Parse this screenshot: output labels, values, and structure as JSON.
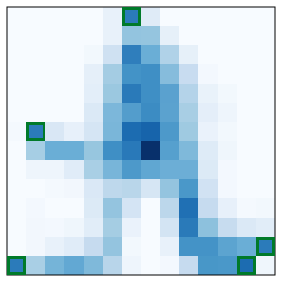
{
  "grid": {
    "rows": 14,
    "cols": 14,
    "colors": [
      [
        "#f7fbff",
        "#f7fbff",
        "#f7fbff",
        "#f7fbff",
        "#f7fbff",
        "#e8f1fa",
        "#2b7bba",
        "#dfebf7",
        "#f7fbff",
        "#f7fbff",
        "#f7fbff",
        "#f7fbff",
        "#f7fbff",
        "#f7fbff"
      ],
      [
        "#f7fbff",
        "#f7fbff",
        "#f7fbff",
        "#f7fbff",
        "#f7fbff",
        "#e8f1fa",
        "#93c4df",
        "#95c5df",
        "#e6f0f9",
        "#f7fbff",
        "#f7fbff",
        "#f7fbff",
        "#f7fbff",
        "#f7fbff"
      ],
      [
        "#f7fbff",
        "#f7fbff",
        "#f7fbff",
        "#f7fbff",
        "#f2f8fd",
        "#cfe1f2",
        "#2f7ebc",
        "#6aaed6",
        "#b0d2e8",
        "#e6f0f9",
        "#f7fbff",
        "#f7fbff",
        "#f7fbff",
        "#f7fbff"
      ],
      [
        "#f7fbff",
        "#f7fbff",
        "#f7fbff",
        "#f7fbff",
        "#e5eff9",
        "#a4cce3",
        "#4393c7",
        "#3f8fc5",
        "#86bcdc",
        "#c8dcf0",
        "#f3f8fe",
        "#f7fbff",
        "#f7fbff",
        "#f7fbff"
      ],
      [
        "#f7fbff",
        "#f7fbff",
        "#f7fbff",
        "#f7fbff",
        "#e3eef9",
        "#9bc8e0",
        "#2a7ab9",
        "#3f8fc5",
        "#5aa1cf",
        "#b4d3e9",
        "#e9f2fa",
        "#f2f8fd",
        "#f7fbff",
        "#f7fbff"
      ],
      [
        "#f7fbff",
        "#f7fbff",
        "#f7fbff",
        "#f7fbff",
        "#dbe9f6",
        "#7cb7da",
        "#539dcc",
        "#3c8cc3",
        "#5ba2cf",
        "#a8cee4",
        "#e4eef9",
        "#eef5fc",
        "#f7fbff",
        "#f7fbff"
      ],
      [
        "#f4f9fe",
        "#2b7bba",
        "#d9e7f5",
        "#e7f0fa",
        "#d5e5f4",
        "#7ab6d9",
        "#1c6cb1",
        "#1764ab",
        "#4d99ca",
        "#9fcae1",
        "#eaf2fb",
        "#f2f8fd",
        "#f7fbff",
        "#f7fbff"
      ],
      [
        "#f7fbff",
        "#a6cee4",
        "#6aaed6",
        "#6aaed6",
        "#97c6df",
        "#3f8fc5",
        "#2979b9",
        "#08306b",
        "#56a0ce",
        "#7fb9da",
        "#deebf7",
        "#eff6fc",
        "#f7fbff",
        "#f7fbff"
      ],
      [
        "#f7fbff",
        "#eef5fc",
        "#eef5fc",
        "#e0ecf8",
        "#a9cfe5",
        "#78b5d9",
        "#4d99ca",
        "#60a7d2",
        "#6caed6",
        "#6caed6",
        "#dceaf6",
        "#f3f8fe",
        "#f7fbff",
        "#f7fbff"
      ],
      [
        "#f7fbff",
        "#f7fbff",
        "#f4f9fe",
        "#f2f7fd",
        "#dae8f6",
        "#bed8ec",
        "#b9d6ea",
        "#d6e6f4",
        "#94c4df",
        "#4a98c9",
        "#d1e2f3",
        "#f3f8fe",
        "#f7fbff",
        "#f7fbff"
      ],
      [
        "#f7fbff",
        "#f3f8fe",
        "#f7fbff",
        "#f7fbff",
        "#dceaf6",
        "#94c4df",
        "#d4e4f4",
        "#f7fbff",
        "#bcd7eb",
        "#2070b4",
        "#c6dbef",
        "#e7f0fa",
        "#f4f9fe",
        "#f2f8fd"
      ],
      [
        "#f7fbff",
        "#f2f7fd",
        "#f3f8fe",
        "#eff6fc",
        "#e1edf8",
        "#a5cde3",
        "#eaf2fb",
        "#f7fbff",
        "#d3e4f3",
        "#2a7ab9",
        "#8dc1dd",
        "#c7dcef",
        "#dbe9f6",
        "#e1edf8"
      ],
      [
        "#f7fbff",
        "#f2f7fd",
        "#e8f1fa",
        "#e0ecf8",
        "#c6dbef",
        "#94c4df",
        "#f2f8fd",
        "#f7fbff",
        "#e8f1fa",
        "#4493c7",
        "#4493c7",
        "#5ca4d0",
        "#6aaed6",
        "#2b7bba"
      ],
      [
        "#2b7bba",
        "#a9cfe5",
        "#75b4d8",
        "#62a8d3",
        "#7fb9da",
        "#b8d5ea",
        "#eef5fc",
        "#f7fbff",
        "#f3f8fe",
        "#c6dbef",
        "#4897c8",
        "#4a98c9",
        "#1c6cb1",
        "#eff6fc"
      ]
    ],
    "marked_cells": [
      {
        "row": 0,
        "col": 6
      },
      {
        "row": 6,
        "col": 1
      },
      {
        "row": 12,
        "col": 13
      },
      {
        "row": 13,
        "col": 0
      },
      {
        "row": 13,
        "col": 12
      }
    ],
    "marker_color": "#007a2a",
    "frame_color": "#000000"
  }
}
